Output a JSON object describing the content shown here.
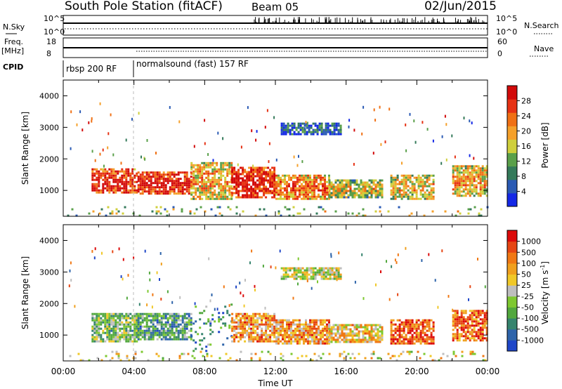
{
  "header": {
    "title": "South Pole Station (fitACF)",
    "beam": "Beam 05",
    "date": "02/Jun/2015"
  },
  "strips": {
    "nsky_label": "N.Sky",
    "nsearch_label": "N.Search",
    "freq_label_1": "Freq.",
    "freq_label_2": "[MHz]",
    "nave_label": "Nave",
    "cpid_label": "CPID",
    "nsky_ticks": [
      "10^5",
      "10^0"
    ],
    "nsearch_ticks": [
      "10^5",
      "10^0"
    ],
    "freq_ticks": [
      "18",
      "8"
    ],
    "nave_ticks": [
      "60",
      "0"
    ],
    "cpid_segments": [
      {
        "label": "rbsp 200 RF",
        "start_hour": 0,
        "end_hour": 4.0
      },
      {
        "label": "normalsound (fast) 157 RF",
        "start_hour": 4.0,
        "end_hour": 24
      }
    ]
  },
  "chart_data": [
    {
      "type": "heatmap",
      "name": "power",
      "ylabel": "Slant Range [km]",
      "xlabel": "",
      "xlim_hours": [
        0,
        24
      ],
      "ylim": [
        180,
        4500
      ],
      "yticks": [
        1000,
        2000,
        3000,
        4000
      ],
      "colorbar": {
        "label": "Power [dB]",
        "ticks": [
          "4",
          "8",
          "12",
          "16",
          "20",
          "24",
          "28"
        ],
        "colors": [
          "#1428e6",
          "#2a5ab4",
          "#347a5a",
          "#5aa04a",
          "#cfcf3c",
          "#f5a02a",
          "#f07014",
          "#e63214",
          "#d20a0a"
        ]
      },
      "regions": [
        {
          "t0": 1.6,
          "t1": 4.2,
          "r0": 900,
          "r1": 1700,
          "level": 0.75
        },
        {
          "t0": 4.2,
          "t1": 7.2,
          "r0": 900,
          "r1": 1600,
          "level": 0.8
        },
        {
          "t0": 7.2,
          "t1": 9.5,
          "r0": 700,
          "r1": 1900,
          "level": 0.5
        },
        {
          "t0": 9.5,
          "t1": 12.0,
          "r0": 800,
          "r1": 1750,
          "level": 0.8
        },
        {
          "t0": 12.0,
          "t1": 15.0,
          "r0": 700,
          "r1": 1500,
          "level": 0.6
        },
        {
          "t0": 15.0,
          "t1": 18.0,
          "r0": 800,
          "r1": 1350,
          "level": 0.4
        },
        {
          "t0": 18.5,
          "t1": 21.0,
          "r0": 700,
          "r1": 1500,
          "level": 0.45
        },
        {
          "t0": 22.0,
          "t1": 24.0,
          "r0": 800,
          "r1": 1800,
          "level": 0.5
        },
        {
          "t0": 12.3,
          "t1": 15.7,
          "r0": 2800,
          "r1": 3150,
          "level": 0.12
        },
        {
          "t0": 0.1,
          "t1": 24.0,
          "r0": 200,
          "r1": 500,
          "level": 0.35
        }
      ]
    },
    {
      "type": "heatmap",
      "name": "velocity",
      "ylabel": "Slant Range [km]",
      "xlabel": "Time UT",
      "xlim_hours": [
        0,
        24
      ],
      "ylim": [
        180,
        4500
      ],
      "yticks": [
        1000,
        2000,
        3000,
        4000
      ],
      "xticks": [
        "00:00",
        "04:00",
        "08:00",
        "12:00",
        "16:00",
        "20:00",
        "00:00"
      ],
      "colorbar": {
        "label": "Velocity [m s",
        "label_sup": "-1",
        "label_end": "]",
        "ticks": [
          "1000",
          "500",
          "100",
          "50",
          "25",
          "-25",
          "-50",
          "-100",
          "-500",
          "-1000"
        ],
        "colors": [
          "#1e46c8",
          "#2e64aa",
          "#36846e",
          "#52a83e",
          "#7ec830",
          "#bebebe",
          "#f0c828",
          "#f0a01e",
          "#f07814",
          "#e64614",
          "#dc0a0a"
        ]
      },
      "regions": [
        {
          "t0": 1.6,
          "t1": 4.2,
          "r0": 800,
          "r1": 1700,
          "level": 0.4
        },
        {
          "t0": 4.2,
          "t1": 7.2,
          "r0": 850,
          "r1": 1700,
          "level": 0.3
        },
        {
          "t0": 7.2,
          "t1": 9.5,
          "r0": 500,
          "r1": 2000,
          "level": 0.25
        },
        {
          "t0": 9.5,
          "t1": 12.0,
          "r0": 800,
          "r1": 1700,
          "level": 0.7
        },
        {
          "t0": 12.0,
          "t1": 15.0,
          "r0": 700,
          "r1": 1500,
          "level": 0.7
        },
        {
          "t0": 15.0,
          "t1": 18.0,
          "r0": 800,
          "r1": 1350,
          "level": 0.6
        },
        {
          "t0": 18.5,
          "t1": 21.0,
          "r0": 700,
          "r1": 1500,
          "level": 0.85
        },
        {
          "t0": 22.0,
          "t1": 24.0,
          "r0": 800,
          "r1": 1800,
          "level": 0.8
        },
        {
          "t0": 12.3,
          "t1": 15.7,
          "r0": 2800,
          "r1": 3150,
          "level": 0.5
        },
        {
          "t0": 0.1,
          "t1": 24.0,
          "r0": 200,
          "r1": 500,
          "level": 0.55
        }
      ]
    }
  ]
}
